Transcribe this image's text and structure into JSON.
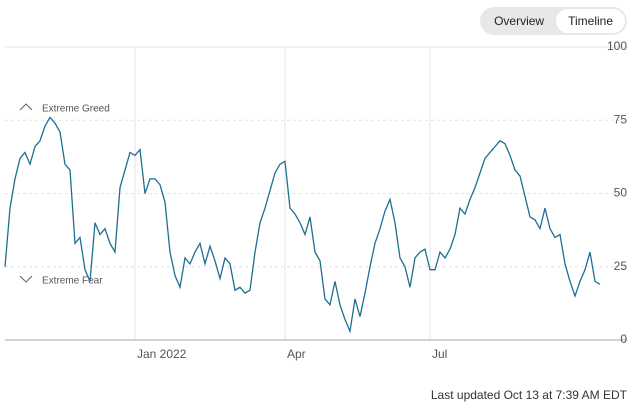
{
  "tabs": [
    {
      "label": "Overview"
    },
    {
      "label": "Timeline",
      "selected": true
    }
  ],
  "chart_data": {
    "type": "line",
    "values": [
      25,
      45,
      55,
      62,
      64,
      60,
      66,
      68,
      73,
      76,
      74,
      71,
      60,
      58,
      33,
      35,
      24,
      20,
      40,
      36,
      38,
      33,
      30,
      52,
      58,
      64,
      63,
      65,
      50,
      55,
      55,
      53,
      47,
      30,
      22,
      18,
      28,
      26,
      30,
      33,
      26,
      32,
      27,
      21,
      28,
      26,
      17,
      18,
      16,
      17,
      30,
      40,
      45,
      51,
      57,
      60,
      61,
      45,
      43,
      40,
      36,
      42,
      30,
      27,
      14,
      12,
      20,
      12,
      7,
      3,
      14,
      8,
      16,
      25,
      33,
      38,
      44,
      48,
      40,
      28,
      25,
      18,
      28,
      30,
      31,
      24,
      24,
      30,
      28,
      31,
      36,
      45,
      43,
      48,
      52,
      57,
      62,
      64,
      66,
      68,
      67,
      63,
      58,
      56,
      49,
      42,
      41,
      38,
      45,
      38,
      35,
      36,
      26,
      20,
      15,
      20,
      24,
      30,
      20,
      19
    ],
    "color": "#1f6e91",
    "xlim": [
      0,
      119
    ],
    "xticks": [
      {
        "value": 26,
        "label": "Jan 2022"
      },
      {
        "value": 56,
        "label": "Apr"
      },
      {
        "value": 85,
        "label": "Jul"
      }
    ],
    "ylim": [
      0,
      100
    ],
    "yticks": [
      0,
      25,
      50,
      75,
      100
    ],
    "annotations": [
      "Extreme Greed",
      "Extreme Fear"
    ],
    "footnote": "Last updated Oct 13 at 7:39 AM EDT"
  }
}
